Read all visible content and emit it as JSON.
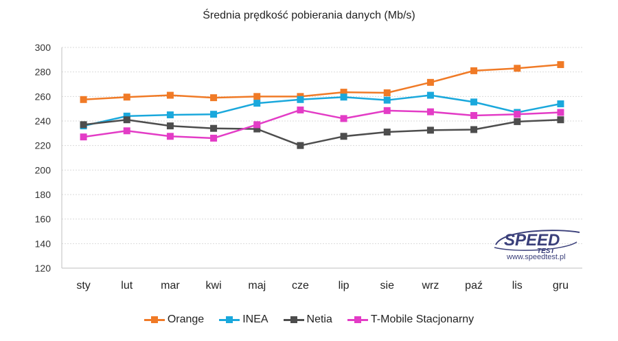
{
  "chart_data": {
    "type": "line",
    "title": "Średnia prędkość pobierania danych (Mb/s)",
    "categories": [
      "sty",
      "lut",
      "mar",
      "kwi",
      "maj",
      "cze",
      "lip",
      "sie",
      "wrz",
      "paź",
      "lis",
      "gru"
    ],
    "ylim": [
      120,
      300
    ],
    "yticks": [
      120,
      140,
      160,
      180,
      200,
      220,
      240,
      260,
      280,
      300
    ],
    "grid": true,
    "legend_position": "bottom",
    "series": [
      {
        "name": "Orange",
        "color": "#f07a26",
        "values": [
          257.5,
          259.5,
          261,
          259,
          260,
          260,
          263.5,
          263,
          271.5,
          281,
          283,
          286
        ]
      },
      {
        "name": "INEA",
        "color": "#1aa8dc",
        "values": [
          236,
          244,
          245,
          245.5,
          254.5,
          257.5,
          259.5,
          257,
          261,
          255.5,
          247,
          254
        ]
      },
      {
        "name": "Netia",
        "color": "#4d4d4d",
        "values": [
          237,
          241,
          236,
          234,
          233.5,
          220,
          227.5,
          231,
          232.5,
          233,
          239.5,
          241
        ]
      },
      {
        "name": "T-Mobile Stacjonarny",
        "color": "#e33cc6",
        "values": [
          227,
          232,
          227.5,
          226,
          237,
          249,
          242,
          248.5,
          247.5,
          244.5,
          245.5,
          247
        ]
      }
    ]
  },
  "logo": {
    "text_main": "SPEED",
    "text_sub": "TEST",
    "url": "www.speedtest.pl",
    "color": "#3a3f7a"
  }
}
